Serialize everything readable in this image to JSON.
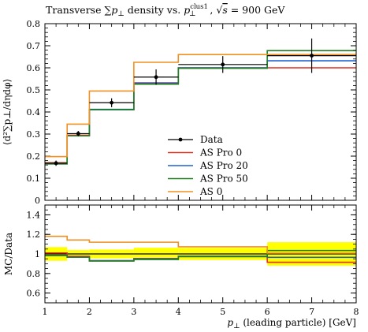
{
  "chart_data": [
    {
      "panel": "main",
      "type": "line",
      "title": "Transverse ∑p⊥ density vs. p⊥clus1, √s = 900 GeV",
      "title_parts": {
        "main": "Transverse ∑",
        "p": "p",
        "sub": "⊥",
        "mid": " density vs. ",
        "p2": "p",
        "sup2": "clus1",
        "sub2": "⊥",
        "tail": ", ",
        "sqrt": "√",
        "s": "s",
        "energy": " = 900 GeV"
      },
      "ylabel": "⟨d²∑p⊥/dηdφ⟩",
      "xlim": [
        1,
        8
      ],
      "ylim": [
        0.0,
        0.8
      ],
      "yticks": [
        "0",
        "0.1",
        "0.2",
        "0.3",
        "0.4",
        "0.5",
        "0.6",
        "0.7",
        "0.8"
      ],
      "bin_edges": [
        1,
        1.5,
        2,
        3,
        4,
        6,
        8
      ],
      "data": {
        "name": "Data",
        "x": [
          1.25,
          1.75,
          2.5,
          3.5,
          5,
          7
        ],
        "y": [
          0.168,
          0.302,
          0.442,
          0.558,
          0.615,
          0.655
        ],
        "yerr": [
          0.012,
          0.012,
          0.02,
          0.035,
          0.038,
          0.078
        ]
      },
      "series": [
        {
          "name": "AS Pro 0",
          "color": "#e03020",
          "values": [
            0.17,
            0.295,
            0.41,
            0.532,
            0.6,
            0.6
          ]
        },
        {
          "name": "AS Pro 20",
          "color": "#2060d0",
          "values": [
            0.165,
            0.292,
            0.412,
            0.53,
            0.6,
            0.632
          ]
        },
        {
          "name": "AS Pro 50",
          "color": "#208020",
          "values": [
            0.165,
            0.292,
            0.41,
            0.526,
            0.598,
            0.678
          ]
        },
        {
          "name": "AS 0",
          "color": "#f09020",
          "values": [
            0.198,
            0.345,
            0.495,
            0.625,
            0.66,
            0.66
          ]
        }
      ],
      "legend": {
        "placement": "center-right",
        "entries": [
          "Data",
          "AS Pro 0",
          "AS Pro 20",
          "AS Pro 50",
          "AS 0"
        ]
      }
    },
    {
      "panel": "ratio",
      "type": "line",
      "ylabel": "MC/Data",
      "xlabel": "p⊥ (leading particle) [GeV]",
      "xlabel_parts": {
        "p": "p",
        "sub": "⊥",
        "rest": " (leading particle) [GeV]"
      },
      "xlim": [
        1,
        8
      ],
      "ylim": [
        0.5,
        1.5
      ],
      "xticks": [
        "1",
        "2",
        "3",
        "4",
        "5",
        "6",
        "7",
        "8"
      ],
      "yticks": [
        "0.6",
        "0.8",
        "1",
        "1.2",
        "1.4"
      ],
      "bin_edges": [
        1,
        1.5,
        2,
        3,
        4,
        6,
        8
      ],
      "band_color": "#ffff00",
      "data_band": {
        "lo": [
          0.93,
          0.96,
          0.955,
          0.937,
          0.938,
          0.88
        ],
        "hi": [
          1.07,
          1.04,
          1.045,
          1.063,
          1.062,
          1.12
        ]
      },
      "data_line": [
        1.0,
        1.0,
        1.0,
        1.0,
        1.0,
        1.0
      ],
      "series": [
        {
          "name": "AS Pro 0",
          "color": "#e03020",
          "values": [
            1.01,
            0.975,
            0.928,
            0.953,
            0.975,
            0.915
          ]
        },
        {
          "name": "AS Pro 20",
          "color": "#2060d0",
          "values": [
            0.985,
            0.967,
            0.932,
            0.95,
            0.975,
            0.965
          ]
        },
        {
          "name": "AS Pro 50",
          "color": "#208020",
          "values": [
            0.983,
            0.967,
            0.928,
            0.943,
            0.972,
            1.035
          ]
        },
        {
          "name": "AS 0",
          "color": "#f09020",
          "values": [
            1.18,
            1.143,
            1.12,
            1.12,
            1.073,
            1.008
          ]
        }
      ]
    }
  ]
}
